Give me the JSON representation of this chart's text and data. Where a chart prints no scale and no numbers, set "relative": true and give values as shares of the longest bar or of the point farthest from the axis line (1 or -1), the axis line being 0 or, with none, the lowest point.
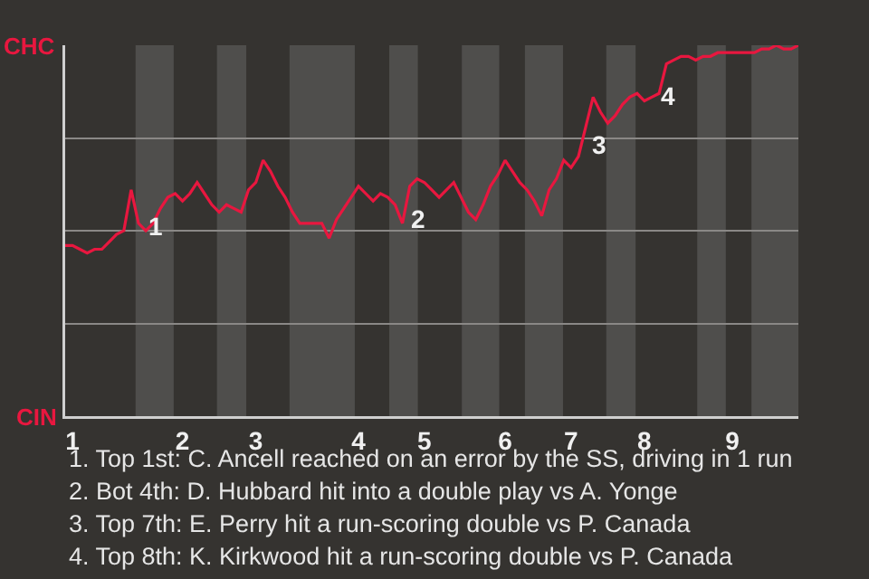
{
  "chart_data": {
    "type": "line",
    "relative": true,
    "categories": [
      null,
      "1",
      null,
      null,
      null,
      null,
      null,
      null,
      null,
      null,
      null,
      null,
      null,
      null,
      null,
      null,
      "2",
      null,
      null,
      null,
      null,
      null,
      null,
      null,
      null,
      null,
      "3",
      null,
      null,
      null,
      null,
      null,
      null,
      null,
      null,
      null,
      null,
      null,
      null,
      null,
      "4",
      null,
      null,
      null,
      null,
      null,
      null,
      null,
      null,
      "5",
      null,
      null,
      null,
      null,
      null,
      null,
      null,
      null,
      null,
      null,
      "6",
      null,
      null,
      null,
      null,
      null,
      null,
      null,
      null,
      "7",
      null,
      null,
      null,
      null,
      null,
      null,
      null,
      null,
      null,
      "8",
      null,
      null,
      null,
      null,
      null,
      null,
      null,
      null,
      null,
      null,
      null,
      "9",
      null,
      null,
      null,
      null,
      null,
      null,
      null,
      null,
      null
    ],
    "series": [
      {
        "color": "#e8173f",
        "values": [
          0.46,
          0.46,
          0.45,
          0.44,
          0.45,
          0.45,
          0.47,
          0.49,
          0.5,
          0.61,
          0.52,
          0.5,
          0.52,
          0.56,
          0.59,
          0.6,
          0.58,
          0.6,
          0.63,
          0.6,
          0.57,
          0.55,
          0.57,
          0.56,
          0.55,
          0.61,
          0.63,
          0.69,
          0.66,
          0.62,
          0.59,
          0.55,
          0.52,
          0.52,
          0.52,
          0.52,
          0.48,
          0.53,
          0.56,
          0.59,
          0.62,
          0.6,
          0.58,
          0.6,
          0.59,
          0.57,
          0.52,
          0.62,
          0.64,
          0.63,
          0.61,
          0.59,
          0.61,
          0.63,
          0.59,
          0.55,
          0.53,
          0.57,
          0.62,
          0.65,
          0.69,
          0.66,
          0.63,
          0.61,
          0.58,
          0.54,
          0.61,
          0.64,
          0.69,
          0.67,
          0.7,
          0.78,
          0.86,
          0.82,
          0.79,
          0.81,
          0.84,
          0.86,
          0.87,
          0.85,
          0.86,
          0.87,
          0.95,
          0.96,
          0.97,
          0.97,
          0.96,
          0.97,
          0.97,
          0.98,
          0.98,
          0.98,
          0.98,
          0.98,
          0.98,
          0.99,
          0.99,
          1.0,
          0.99,
          0.99,
          1.0
        ]
      }
    ],
    "grid": "y",
    "marker": "none",
    "line_style": "solid",
    "annotations": [
      "CHC",
      "CIN",
      "1",
      "2",
      "3",
      "4",
      "1. Top 1st: C. Ancell reached on an error by the SS, driving in 1 run",
      "2. Bot 4th: D. Hubbard hit into a double play vs A. Yonge",
      "3. Top 7th: E. Perry hit a run-scoring double vs P. Canada",
      "4. Top 8th: K. Kirkwood hit a run-scoring double vs P. Canada"
    ]
  }
}
